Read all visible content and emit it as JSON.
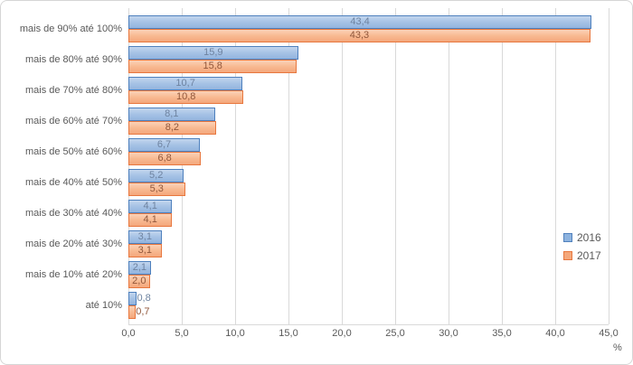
{
  "chart_data": {
    "type": "bar",
    "orientation": "horizontal",
    "title": "",
    "xlabel": "%",
    "ylabel": "",
    "xlim": [
      0,
      45
    ],
    "x_tick_values": [
      0,
      5,
      10,
      15,
      20,
      25,
      30,
      35,
      40,
      45
    ],
    "x_tick_labels": [
      "0,0",
      "5,0",
      "10,0",
      "15,0",
      "20,0",
      "25,0",
      "30,0",
      "35,0",
      "40,0",
      "45,0"
    ],
    "grid": true,
    "legend_position": "right",
    "categories": [
      "mais de 90% até 100%",
      "mais de 80% até 90%",
      "mais de 70% até 80%",
      "mais de 60% até 70%",
      "mais de 50% até 60%",
      "mais de 40% até 50%",
      "mais de 30% até 40%",
      "mais de 20% até 30%",
      "mais de 10% até 20%",
      "até 10%"
    ],
    "series": [
      {
        "name": "2016",
        "values": [
          43.4,
          15.9,
          10.7,
          8.1,
          6.7,
          5.2,
          4.1,
          3.1,
          2.1,
          0.8
        ],
        "value_labels": [
          "43,4",
          "15,9",
          "10,7",
          "8,1",
          "6,7",
          "5,2",
          "4,1",
          "3,1",
          "2,1",
          "0,8"
        ],
        "fill_top": "#c2d5ee",
        "fill_mid": "#a6c2e5",
        "fill_bottom": "#93b4de",
        "border": "#4e80bd",
        "label_color": "#6e83a0",
        "swatch_fill": "#8db3df",
        "swatch_border": "#5181bd"
      },
      {
        "name": "2017",
        "values": [
          43.3,
          15.8,
          10.8,
          8.2,
          6.8,
          5.3,
          4.1,
          3.1,
          2.0,
          0.7
        ],
        "value_labels": [
          "43,3",
          "15,8",
          "10,8",
          "8,2",
          "6,8",
          "5,3",
          "4,1",
          "3,1",
          "2,0",
          "0,7"
        ],
        "fill_top": "#fbd2b8",
        "fill_mid": "#f8ba92",
        "fill_bottom": "#f4a77c",
        "border": "#e8773e",
        "label_color": "#91573b",
        "swatch_fill": "#f4a87c",
        "swatch_border": "#e8773e"
      }
    ],
    "colors": {
      "gridline": "#d9d9d9",
      "axis_text": "#595959",
      "category_text": "#595959",
      "legend_text": "#595959",
      "chart_border": "#d6d6d6"
    }
  }
}
